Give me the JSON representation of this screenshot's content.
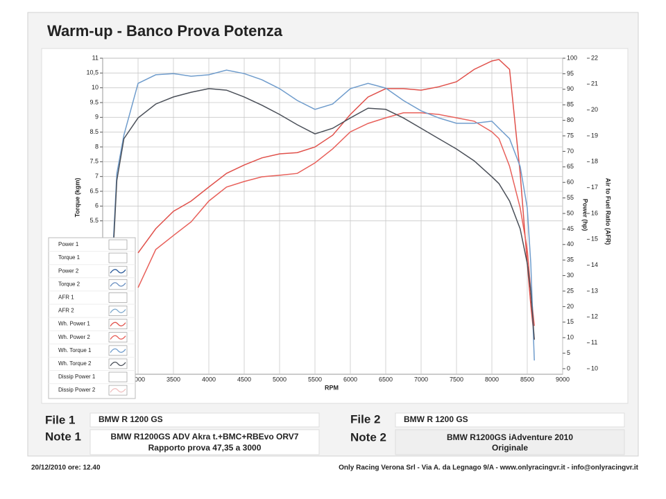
{
  "chart_data": {
    "type": "line",
    "title": "Warm-up  - Banco Prova Potenza",
    "xlabel": "RPM",
    "ylabel": "Torque (kgm)",
    "y2label": "Power (hp)",
    "y3label": "Air to Fuel Ratio (AFR)",
    "x": [
      2650,
      2700,
      2800,
      3000,
      3250,
      3500,
      3750,
      4000,
      4250,
      4500,
      4750,
      5000,
      5250,
      5500,
      5750,
      6000,
      6250,
      6500,
      6750,
      7000,
      7250,
      7500,
      7750,
      8000,
      8100,
      8250,
      8400,
      8500,
      8550,
      8600
    ],
    "xlim": [
      2500,
      9000
    ],
    "xticks": [
      3000,
      3500,
      4000,
      4500,
      5000,
      5500,
      6000,
      6500,
      7000,
      7500,
      8000,
      8500,
      9000
    ],
    "ylim": [
      0.5,
      11
    ],
    "yticks": [
      5.5,
      6,
      6.5,
      7,
      7.5,
      8,
      8.5,
      9,
      9.5,
      10,
      {
        "value": 10.5,
        "label": "10,5"
      },
      11
    ],
    "y2lim": [
      0,
      100
    ],
    "y2ticks": [
      0,
      5,
      10,
      15,
      20,
      25,
      30,
      35,
      40,
      45,
      50,
      55,
      60,
      65,
      70,
      75,
      80,
      85,
      90,
      95,
      100
    ],
    "y3lim": [
      10,
      22
    ],
    "y3ticks": [
      10,
      11,
      12,
      13,
      14,
      15,
      16,
      17,
      18,
      19,
      20,
      21,
      22
    ],
    "grid": true,
    "series": [
      {
        "name": "Power 1"
      },
      {
        "name": "Torque 1"
      },
      {
        "name": "Power 2",
        "color": "#2a5a9a"
      },
      {
        "name": "Torque 2",
        "color": "#6a8fc0"
      },
      {
        "name": "AFR 1"
      },
      {
        "name": "AFR 2",
        "color": "#7aa6cc"
      },
      {
        "name": "Wh. Power 1",
        "color": "#e0504a",
        "axis": "y2",
        "values": [
          null,
          null,
          null,
          37.3,
          45.1,
          50.7,
          54.0,
          58.5,
          62.9,
          65.6,
          67.9,
          69.2,
          69.6,
          71.4,
          75.2,
          81.9,
          87.5,
          90.2,
          90.2,
          89.7,
          90.8,
          92.4,
          96.4,
          99.1,
          99.6,
          96.4,
          62.9,
          33.9,
          20.5,
          9.4
        ]
      },
      {
        "name": "Wh. Power 2",
        "color": "#e8605a",
        "axis": "y2",
        "values": [
          null,
          null,
          null,
          26.1,
          38.4,
          42.9,
          47.3,
          54.0,
          58.5,
          60.3,
          61.8,
          62.3,
          62.9,
          66.3,
          70.8,
          76.3,
          79.0,
          80.8,
          82.4,
          82.4,
          81.9,
          80.8,
          79.7,
          76.3,
          74.1,
          65.2,
          51.8,
          38.4,
          25.0,
          13.8
        ]
      },
      {
        "name": "Wh. Torque 1",
        "color": "#6f9ccc",
        "values": [
          4.77,
          7.1,
          8.4,
          10.15,
          10.44,
          10.48,
          10.39,
          10.44,
          10.6,
          10.48,
          10.27,
          9.97,
          9.57,
          9.27,
          9.45,
          9.97,
          10.15,
          9.99,
          9.57,
          9.22,
          8.98,
          8.8,
          8.8,
          8.87,
          8.63,
          8.28,
          7.34,
          5.94,
          4.06,
          0.78
        ]
      },
      {
        "name": "Wh. Torque 2",
        "color": "#4a4f58",
        "values": [
          4.53,
          6.87,
          8.28,
          8.98,
          9.45,
          9.69,
          9.85,
          9.97,
          9.92,
          9.69,
          9.41,
          9.1,
          8.75,
          8.44,
          8.63,
          8.98,
          9.31,
          9.27,
          8.98,
          8.63,
          8.28,
          7.93,
          7.53,
          6.99,
          6.76,
          6.17,
          5.23,
          4.06,
          3.12,
          1.48
        ]
      },
      {
        "name": "Dissip Power 1"
      },
      {
        "name": "Dissip Power 2",
        "color": "#f0c0c0"
      }
    ]
  },
  "files": [
    {
      "label": "File 1",
      "name": "BMW R 1200 GS",
      "note_label": "Note 1",
      "note": [
        "BMW R1200GS ADV Akra t.+BMC+RBEvo ORV7",
        "Rapporto prova 47,35 a 3000"
      ]
    },
    {
      "label": "File 2",
      "name": "BMW R 1200 GS",
      "note_label": "Note 2",
      "note": [
        "BMW R1200GS iAdventure 2010",
        "Originale"
      ]
    }
  ],
  "footer": {
    "date": "20/12/2010  ore: 12.40",
    "company": "Only Racing Verona Srl - Via A. da Legnago 9/A - www.onlyracingvr.it - info@onlyracingvr.it"
  }
}
